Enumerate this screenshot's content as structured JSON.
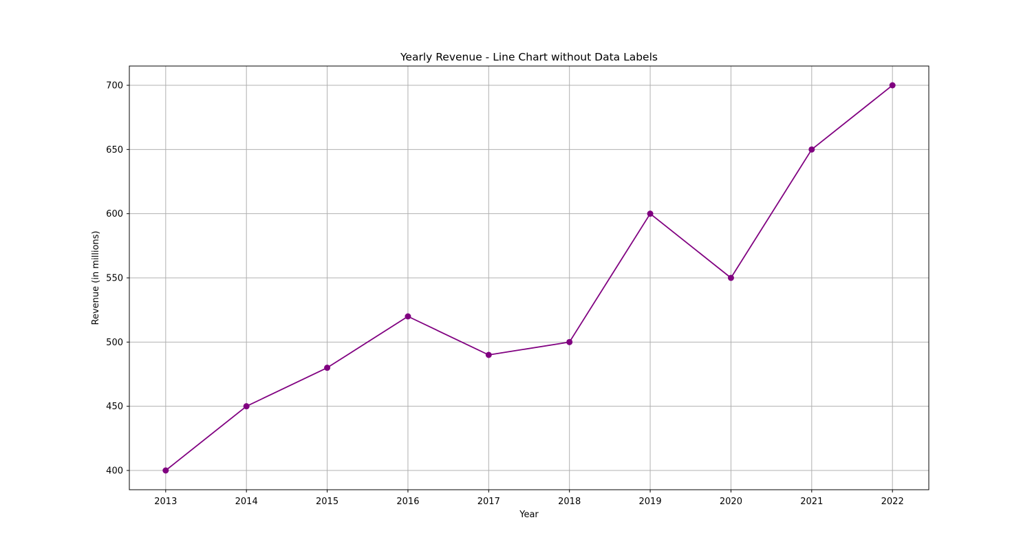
{
  "chart_data": {
    "type": "line",
    "title": "Yearly Revenue - Line Chart without Data Labels",
    "xlabel": "Year",
    "ylabel": "Revenue (in millions)",
    "x": [
      2013,
      2014,
      2015,
      2016,
      2017,
      2018,
      2019,
      2020,
      2021,
      2022
    ],
    "series": [
      {
        "values": [
          400,
          450,
          480,
          520,
          490,
          500,
          600,
          550,
          650,
          700
        ],
        "color": "#800080",
        "marker": "circle"
      }
    ],
    "xlim": [
      2012.55,
      2022.45
    ],
    "ylim": [
      385,
      715
    ],
    "xticks": [
      "2013",
      "2014",
      "2015",
      "2016",
      "2017",
      "2018",
      "2019",
      "2020",
      "2021",
      "2022"
    ],
    "yticks": [
      400,
      450,
      500,
      550,
      600,
      650,
      700
    ],
    "grid": true,
    "grid_color": "#b0b0b0",
    "legend": false
  }
}
